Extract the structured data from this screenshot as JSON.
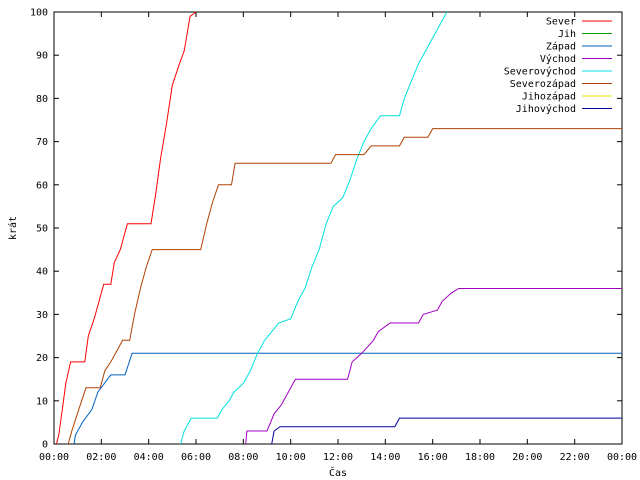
{
  "chart_data": {
    "type": "line",
    "xlabel": "Čas",
    "ylabel": "krát",
    "xlim": [
      0,
      24
    ],
    "ylim": [
      0,
      100
    ],
    "grid": false,
    "legend_position": "top-right",
    "x_ticks": [
      {
        "v": 0,
        "label": "00:00"
      },
      {
        "v": 2,
        "label": "02:00"
      },
      {
        "v": 4,
        "label": "04:00"
      },
      {
        "v": 6,
        "label": "06:00"
      },
      {
        "v": 8,
        "label": "08:00"
      },
      {
        "v": 10,
        "label": "10:00"
      },
      {
        "v": 12,
        "label": "12:00"
      },
      {
        "v": 14,
        "label": "14:00"
      },
      {
        "v": 16,
        "label": "16:00"
      },
      {
        "v": 18,
        "label": "18:00"
      },
      {
        "v": 20,
        "label": "20:00"
      },
      {
        "v": 22,
        "label": "22:00"
      },
      {
        "v": 24,
        "label": "00:00"
      }
    ],
    "y_ticks": [
      0,
      10,
      20,
      30,
      40,
      50,
      60,
      70,
      80,
      90,
      100
    ],
    "series": [
      {
        "name": "Sever",
        "color": "#ff0000",
        "points": [
          [
            0.1,
            0
          ],
          [
            0.2,
            2
          ],
          [
            0.35,
            8
          ],
          [
            0.5,
            14
          ],
          [
            0.7,
            19
          ],
          [
            1.3,
            19
          ],
          [
            1.45,
            25
          ],
          [
            1.7,
            29
          ],
          [
            1.9,
            33
          ],
          [
            2.1,
            37
          ],
          [
            2.4,
            37
          ],
          [
            2.55,
            42
          ],
          [
            2.8,
            45
          ],
          [
            3.1,
            51
          ],
          [
            4.1,
            51
          ],
          [
            4.3,
            58
          ],
          [
            4.5,
            66
          ],
          [
            4.75,
            74
          ],
          [
            5.0,
            83
          ],
          [
            5.3,
            88
          ],
          [
            5.5,
            91
          ],
          [
            5.75,
            99
          ],
          [
            6.0,
            100
          ]
        ]
      },
      {
        "name": "Jih",
        "color": "#00a000",
        "points": []
      },
      {
        "name": "Západ",
        "color": "#0060c0",
        "points": [
          [
            0.85,
            0
          ],
          [
            0.9,
            2
          ],
          [
            1.2,
            5
          ],
          [
            1.6,
            8
          ],
          [
            1.85,
            12
          ],
          [
            2.4,
            16
          ],
          [
            3.0,
            16
          ],
          [
            3.3,
            21
          ],
          [
            24,
            21
          ]
        ]
      },
      {
        "name": "Východ",
        "color": "#a000c0",
        "points": [
          [
            8.1,
            0
          ],
          [
            8.15,
            3
          ],
          [
            9.0,
            3
          ],
          [
            9.3,
            7
          ],
          [
            9.6,
            9
          ],
          [
            10.0,
            13
          ],
          [
            10.2,
            15
          ],
          [
            12.4,
            15
          ],
          [
            12.6,
            19
          ],
          [
            13.0,
            21
          ],
          [
            13.5,
            24
          ],
          [
            13.7,
            26
          ],
          [
            14.2,
            28
          ],
          [
            15.4,
            28
          ],
          [
            15.6,
            30
          ],
          [
            16.2,
            31
          ],
          [
            16.4,
            33
          ],
          [
            16.8,
            35
          ],
          [
            17.1,
            36
          ],
          [
            24,
            36
          ]
        ]
      },
      {
        "name": "Severovýchod",
        "color": "#00e0e0",
        "points": [
          [
            5.35,
            0
          ],
          [
            5.5,
            3
          ],
          [
            5.8,
            6
          ],
          [
            6.9,
            6
          ],
          [
            7.1,
            8
          ],
          [
            7.4,
            10
          ],
          [
            7.6,
            12
          ],
          [
            8.0,
            14
          ],
          [
            8.3,
            17
          ],
          [
            8.6,
            21
          ],
          [
            8.9,
            24
          ],
          [
            9.2,
            26
          ],
          [
            9.5,
            28
          ],
          [
            10.0,
            29
          ],
          [
            10.3,
            33
          ],
          [
            10.6,
            36
          ],
          [
            10.9,
            41
          ],
          [
            11.2,
            45
          ],
          [
            11.5,
            51
          ],
          [
            11.8,
            55
          ],
          [
            12.2,
            57
          ],
          [
            12.5,
            61
          ],
          [
            12.8,
            66
          ],
          [
            13.1,
            70
          ],
          [
            13.4,
            73
          ],
          [
            13.8,
            76
          ],
          [
            14.6,
            76
          ],
          [
            14.8,
            80
          ],
          [
            15.1,
            84
          ],
          [
            15.4,
            88
          ],
          [
            15.7,
            91
          ],
          [
            16.0,
            94
          ],
          [
            16.3,
            97
          ],
          [
            16.6,
            100
          ]
        ]
      },
      {
        "name": "Severozápad",
        "color": "#b04000",
        "points": [
          [
            0.6,
            0
          ],
          [
            0.75,
            3
          ],
          [
            1.05,
            8
          ],
          [
            1.35,
            13
          ],
          [
            1.95,
            13
          ],
          [
            2.15,
            17
          ],
          [
            2.4,
            19
          ],
          [
            2.7,
            22
          ],
          [
            2.9,
            24
          ],
          [
            3.2,
            24
          ],
          [
            3.4,
            30
          ],
          [
            3.65,
            36
          ],
          [
            3.9,
            41
          ],
          [
            4.15,
            45
          ],
          [
            6.2,
            45
          ],
          [
            6.45,
            51
          ],
          [
            6.7,
            56
          ],
          [
            6.95,
            60
          ],
          [
            7.5,
            60
          ],
          [
            7.65,
            65
          ],
          [
            11.7,
            65
          ],
          [
            11.9,
            67
          ],
          [
            13.1,
            67
          ],
          [
            13.4,
            69
          ],
          [
            14.6,
            69
          ],
          [
            14.8,
            71
          ],
          [
            15.8,
            71
          ],
          [
            16.0,
            73
          ],
          [
            24,
            73
          ]
        ]
      },
      {
        "name": "Jihozápad",
        "color": "#e8e000",
        "points": []
      },
      {
        "name": "Jihovýchod",
        "color": "#0000a0",
        "points": [
          [
            9.2,
            0
          ],
          [
            9.3,
            3
          ],
          [
            9.55,
            4
          ],
          [
            14.4,
            4
          ],
          [
            14.6,
            6
          ],
          [
            24,
            6
          ]
        ]
      }
    ]
  }
}
